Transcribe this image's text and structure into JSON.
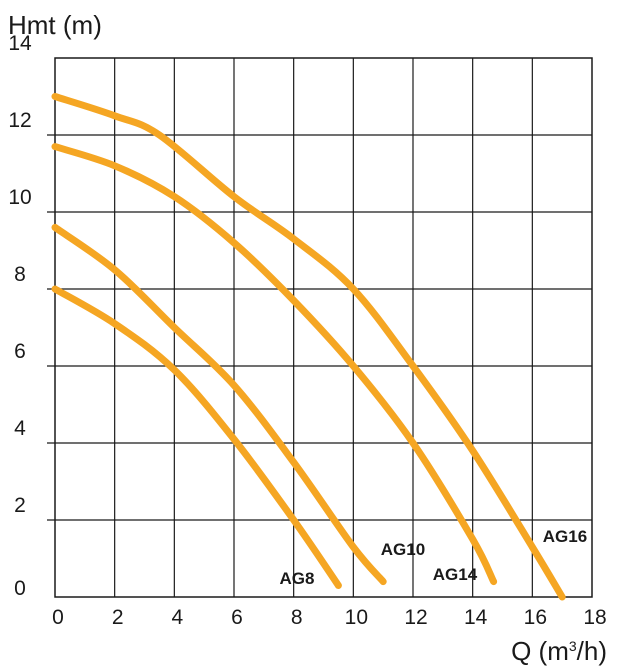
{
  "chart_data": {
    "type": "line",
    "ylabel": "Hmt (m)",
    "xlabel": {
      "base": "Q (m",
      "sup": "3",
      "tail": "/h)"
    },
    "xlim": [
      0,
      18
    ],
    "ylim": [
      0,
      14
    ],
    "xticks": [
      "0",
      "2",
      "4",
      "6",
      "8",
      "10",
      "12",
      "14",
      "16",
      "18"
    ],
    "yticks": [
      "0",
      "2",
      "4",
      "6",
      "8",
      "10",
      "12",
      "14"
    ],
    "grid": true,
    "series": [
      {
        "name": "AG8",
        "x": [
          0,
          2,
          4,
          6,
          8,
          9.5
        ],
        "y": [
          8.0,
          7.1,
          5.9,
          4.1,
          2.0,
          0.3
        ]
      },
      {
        "name": "AG10",
        "x": [
          0,
          2,
          4,
          6,
          8,
          10,
          11
        ],
        "y": [
          9.6,
          8.5,
          7.0,
          5.5,
          3.5,
          1.3,
          0.4
        ]
      },
      {
        "name": "AG14",
        "x": [
          0,
          2,
          4,
          6,
          8,
          10,
          12,
          14,
          14.7
        ],
        "y": [
          11.7,
          11.2,
          10.4,
          9.2,
          7.7,
          6.0,
          4.0,
          1.5,
          0.4
        ]
      },
      {
        "name": "AG16",
        "x": [
          0,
          2,
          3.5,
          6,
          8,
          10,
          12,
          14,
          16,
          17
        ],
        "y": [
          13.0,
          12.5,
          12.0,
          10.4,
          9.3,
          8.0,
          6.0,
          3.8,
          1.3,
          0.0
        ]
      }
    ],
    "colors": {
      "curve": "#f5a623",
      "grid": "#1a1a1a",
      "text": "#1a1a1a"
    }
  }
}
